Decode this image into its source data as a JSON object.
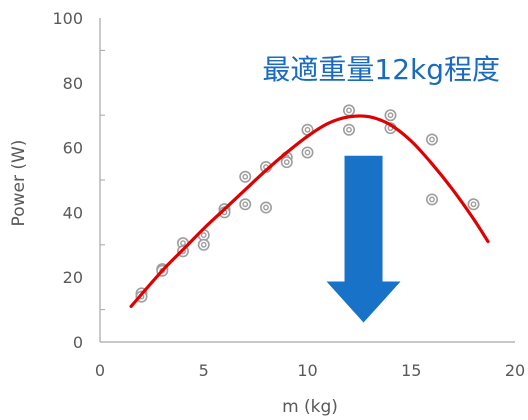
{
  "chart_data": {
    "type": "scatter",
    "title": "",
    "xlabel": "m (kg)",
    "ylabel": "Power (W)",
    "xlim": [
      0,
      20
    ],
    "ylim": [
      0,
      100
    ],
    "xticks": [
      "0",
      "5",
      "10",
      "15",
      "20"
    ],
    "yticks": [
      "0",
      "20",
      "40",
      "60",
      "80",
      "100"
    ],
    "grid": false,
    "legend": "none",
    "annotation": "最適重量12kg程度",
    "series": [
      {
        "marker": "double-ring",
        "points": [
          [
            2,
            15
          ],
          [
            2,
            14
          ],
          [
            3,
            22.5
          ],
          [
            3,
            22
          ],
          [
            4,
            30.5
          ],
          [
            4,
            28
          ],
          [
            5,
            33
          ],
          [
            5,
            30
          ],
          [
            6,
            41
          ],
          [
            6,
            40
          ],
          [
            7,
            51
          ],
          [
            7,
            42.5
          ],
          [
            8,
            54
          ],
          [
            8,
            41.5
          ],
          [
            9,
            57
          ],
          [
            9,
            55.5
          ],
          [
            10,
            65.5
          ],
          [
            10,
            58.5
          ],
          [
            12,
            71.5
          ],
          [
            12,
            65.5
          ],
          [
            14,
            70
          ],
          [
            14,
            66
          ],
          [
            16,
            62.5
          ],
          [
            16,
            44
          ],
          [
            18,
            42.5
          ]
        ]
      },
      {
        "kind": "fit-curve",
        "points": [
          [
            1.5,
            11
          ],
          [
            3,
            22
          ],
          [
            4,
            28.5
          ],
          [
            5,
            35
          ],
          [
            6,
            41
          ],
          [
            7,
            47
          ],
          [
            8,
            53
          ],
          [
            9,
            58.5
          ],
          [
            10,
            63.5
          ],
          [
            11,
            67.5
          ],
          [
            12,
            69.5
          ],
          [
            13,
            69.5
          ],
          [
            14,
            67
          ],
          [
            15,
            62
          ],
          [
            16,
            55
          ],
          [
            17,
            47
          ],
          [
            18,
            38
          ],
          [
            18.7,
            31
          ]
        ]
      }
    ],
    "colors": {
      "marker": "#9e9e9e",
      "curve": "#e00000",
      "annotation": "#1a6bbf",
      "arrow": "#1872c8",
      "axis": "#a6a6a6",
      "text": "#595959"
    },
    "arrow": {
      "x": 12.7,
      "y_from": 57.5,
      "y_to": 6,
      "direction": "down"
    }
  }
}
